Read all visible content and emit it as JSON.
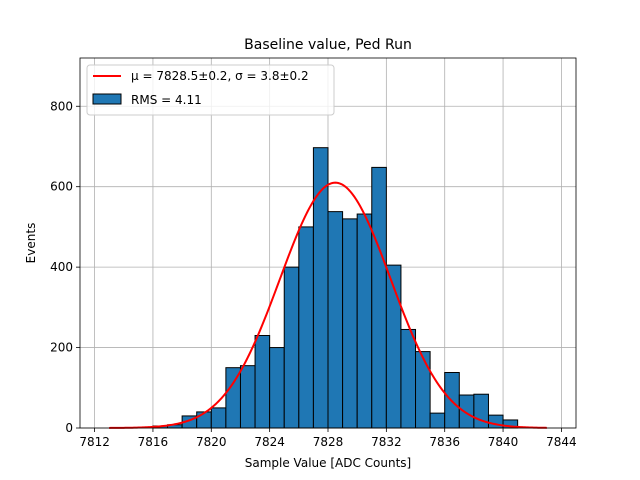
{
  "chart_data": {
    "type": "bar",
    "title": "Baseline value, Ped Run",
    "xlabel": "Sample Value [ADC Counts]",
    "ylabel": "Events",
    "xlim": [
      7811.0,
      7845.0
    ],
    "ylim": [
      0,
      920
    ],
    "xticks": [
      7812,
      7816,
      7820,
      7824,
      7828,
      7832,
      7836,
      7840,
      7844
    ],
    "yticks": [
      0,
      200,
      400,
      600,
      800
    ],
    "grid": true,
    "legend_position": "top-left",
    "bin_width": 1,
    "bar_color": "#1f77b4",
    "fit_color": "#ff0000",
    "histogram": {
      "name": "RMS = 4.11",
      "bins": [
        {
          "left": 7816,
          "value": 5
        },
        {
          "left": 7817,
          "value": 8
        },
        {
          "left": 7818,
          "value": 30
        },
        {
          "left": 7819,
          "value": 40
        },
        {
          "left": 7820,
          "value": 50
        },
        {
          "left": 7821,
          "value": 150
        },
        {
          "left": 7822,
          "value": 155
        },
        {
          "left": 7823,
          "value": 230
        },
        {
          "left": 7824,
          "value": 200
        },
        {
          "left": 7825,
          "value": 400
        },
        {
          "left": 7826,
          "value": 500
        },
        {
          "left": 7827,
          "value": 697
        },
        {
          "left": 7828,
          "value": 538
        },
        {
          "left": 7829,
          "value": 520
        },
        {
          "left": 7830,
          "value": 532
        },
        {
          "left": 7831,
          "value": 648
        },
        {
          "left": 7832,
          "value": 405
        },
        {
          "left": 7833,
          "value": 245
        },
        {
          "left": 7834,
          "value": 190
        },
        {
          "left": 7835,
          "value": 37
        },
        {
          "left": 7836,
          "value": 138
        },
        {
          "left": 7837,
          "value": 82
        },
        {
          "left": 7838,
          "value": 84
        },
        {
          "left": 7839,
          "value": 32
        },
        {
          "left": 7840,
          "value": 20
        }
      ]
    },
    "fit": {
      "name": "μ = 7828.5±0.2, σ = 3.8±0.2",
      "type": "gaussian",
      "mu": 7828.5,
      "sigma": 3.8,
      "amplitude": 610,
      "x_range": [
        7813,
        7843
      ]
    }
  }
}
